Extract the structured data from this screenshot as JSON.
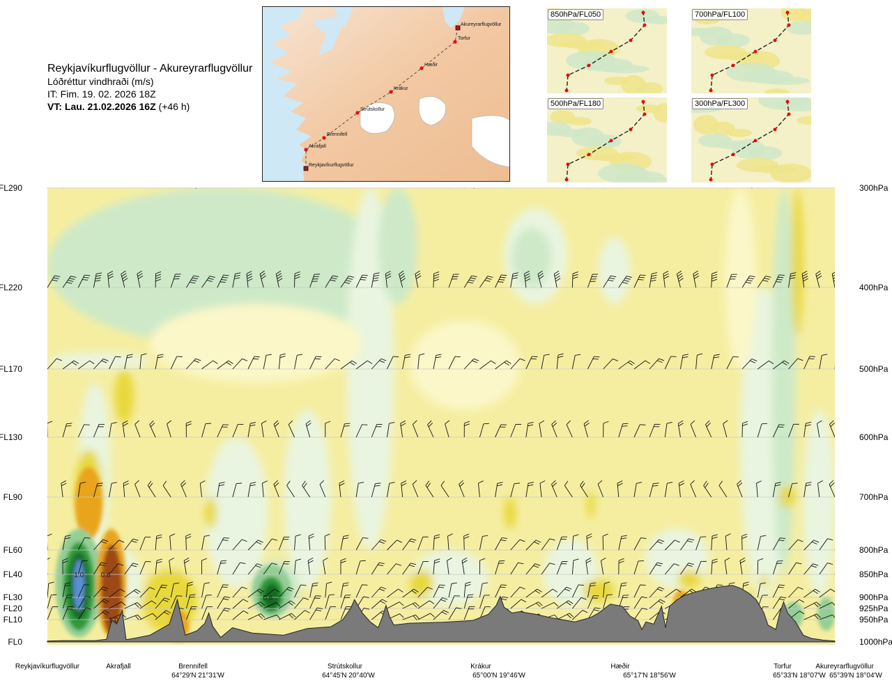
{
  "header": {
    "route": "Reykjavíkurflugvöllur - Akureyrarflugvöllur",
    "quantity": "Lóðréttur vindhraði (m/s)",
    "issue_time": "IT: Fim. 19. 02. 2026 18Z",
    "valid_prefix": "VT: Lau. 21.02.2026 16Z",
    "valid_suffix": "(+46 h)"
  },
  "route_map": {
    "waypoints": [
      {
        "name": "Akureyrarflugvöllur",
        "type": "airport"
      },
      {
        "name": "Torfur",
        "type": "point"
      },
      {
        "name": "Hæðir",
        "type": "point"
      },
      {
        "name": "Krákur",
        "type": "point"
      },
      {
        "name": "Strútskollur",
        "type": "point"
      },
      {
        "name": "Brennifell",
        "type": "point"
      },
      {
        "name": "Akrafjall",
        "type": "point"
      },
      {
        "name": "Reykjavíkurflugvöllur",
        "type": "airport"
      }
    ]
  },
  "mini_maps": [
    {
      "label": "850hPa/FL050"
    },
    {
      "label": "700hPa/FL100"
    },
    {
      "label": "500hPa/FL180"
    },
    {
      "label": "300hPa/FL300"
    }
  ],
  "colors": {
    "down_light": "#fbf7c8",
    "down_mid": "#f5eea1",
    "down_strong": "#e8d83a",
    "down_orange": "#e9a41f",
    "down_brown": "#9c4a14",
    "up_light": "#e9f5e0",
    "up_mid": "#cde9c8",
    "up_strong": "#93cf95",
    "up_green": "#2f9a3a",
    "up_dark": "#136a23",
    "up_blue": "#5a8fd2",
    "terrain": "#7a7a7a",
    "water": "#cfe8f5",
    "land": "#f3d0b0"
  },
  "chart_data": {
    "type": "heatmap",
    "title": "Lóðréttur vindhraði (m/s)",
    "x_axis": "route distance (fraction of route)",
    "left_axis_levels": [
      {
        "label": "FL290",
        "pressure": 300
      },
      {
        "label": "FL220",
        "pressure": 400
      },
      {
        "label": "FL170",
        "pressure": 500
      },
      {
        "label": "FL130",
        "pressure": 600
      },
      {
        "label": "FL90",
        "pressure": 700
      },
      {
        "label": "FL60",
        "pressure": 800
      },
      {
        "label": "FL40",
        "pressure": 850
      },
      {
        "label": "FL30",
        "pressure": 900
      },
      {
        "label": "FL20",
        "pressure": 925
      },
      {
        "label": "FL10",
        "pressure": 950
      },
      {
        "label": "FL0",
        "pressure": 1000
      }
    ],
    "right_axis_levels": [
      {
        "label": "300hPa",
        "pressure": 300
      },
      {
        "label": "400hPa",
        "pressure": 400
      },
      {
        "label": "500hPa",
        "pressure": 500
      },
      {
        "label": "600hPa",
        "pressure": 600
      },
      {
        "label": "700hPa",
        "pressure": 700
      },
      {
        "label": "800hPa",
        "pressure": 800
      },
      {
        "label": "850hPa",
        "pressure": 850
      },
      {
        "label": "900hPa",
        "pressure": 900
      },
      {
        "label": "925hPa",
        "pressure": 925
      },
      {
        "label": "950hPa",
        "pressure": 950
      },
      {
        "label": "1000hPa",
        "pressure": 1000
      }
    ],
    "barb_levels": [
      300,
      400,
      500,
      600,
      700,
      800,
      850,
      900,
      925,
      950
    ],
    "ylim_hpa": [
      300,
      1000
    ],
    "waypoints": [
      {
        "name": "Reykjavíkurflugvöllur",
        "coord": "",
        "x": 0.0
      },
      {
        "name": "Akrafjall",
        "coord": "",
        "x": 0.09
      },
      {
        "name": "Brennifell",
        "coord": "64°29'N 21°31'W",
        "x": 0.19
      },
      {
        "name": "Strútskollur",
        "coord": "64°45'N 20°40'W",
        "x": 0.38
      },
      {
        "name": "Krákur",
        "coord": "65°00'N 19°46'W",
        "x": 0.57
      },
      {
        "name": "Hæðir",
        "coord": "65°17'N 18°56'W",
        "x": 0.77
      },
      {
        "name": "Torfur",
        "coord": "65°33'N 18°07'W",
        "x": 0.95
      },
      {
        "name": "Akureyrarflugvöllur",
        "coord": "65°39'N 18°04'W",
        "x": 1.0
      }
    ],
    "value_labels": [
      {
        "text": "1.0",
        "x": 0.04,
        "p": 850
      },
      {
        "text": "0.6",
        "x": 0.074,
        "p": 850
      },
      {
        "text": "0.6",
        "x": 0.28,
        "p": 900
      },
      {
        "text": "1.0",
        "x": 0.084,
        "p": 950
      }
    ],
    "terrain_hpa": [
      [
        0.0,
        998
      ],
      [
        0.02,
        997
      ],
      [
        0.06,
        997
      ],
      [
        0.075,
        994
      ],
      [
        0.082,
        950
      ],
      [
        0.088,
        960
      ],
      [
        0.095,
        930
      ],
      [
        0.1,
        995
      ],
      [
        0.11,
        992
      ],
      [
        0.13,
        985
      ],
      [
        0.155,
        960
      ],
      [
        0.165,
        905
      ],
      [
        0.175,
        985
      ],
      [
        0.19,
        975
      ],
      [
        0.2,
        958
      ],
      [
        0.205,
        935
      ],
      [
        0.21,
        965
      ],
      [
        0.22,
        990
      ],
      [
        0.235,
        968
      ],
      [
        0.26,
        980
      ],
      [
        0.3,
        985
      ],
      [
        0.33,
        970
      ],
      [
        0.36,
        966
      ],
      [
        0.375,
        950
      ],
      [
        0.385,
        925
      ],
      [
        0.39,
        905
      ],
      [
        0.4,
        935
      ],
      [
        0.41,
        955
      ],
      [
        0.42,
        968
      ],
      [
        0.425,
        946
      ],
      [
        0.43,
        918
      ],
      [
        0.435,
        945
      ],
      [
        0.44,
        962
      ],
      [
        0.46,
        958
      ],
      [
        0.5,
        956
      ],
      [
        0.54,
        952
      ],
      [
        0.56,
        938
      ],
      [
        0.57,
        918
      ],
      [
        0.575,
        898
      ],
      [
        0.58,
        922
      ],
      [
        0.59,
        935
      ],
      [
        0.6,
        932
      ],
      [
        0.62,
        938
      ],
      [
        0.64,
        946
      ],
      [
        0.67,
        955
      ],
      [
        0.69,
        945
      ],
      [
        0.7,
        935
      ],
      [
        0.715,
        915
      ],
      [
        0.73,
        920
      ],
      [
        0.74,
        942
      ],
      [
        0.75,
        952
      ],
      [
        0.755,
        972
      ],
      [
        0.76,
        955
      ],
      [
        0.77,
        960
      ],
      [
        0.78,
        920
      ],
      [
        0.785,
        968
      ],
      [
        0.79,
        920
      ],
      [
        0.8,
        905
      ],
      [
        0.81,
        895
      ],
      [
        0.83,
        885
      ],
      [
        0.85,
        878
      ],
      [
        0.87,
        874
      ],
      [
        0.88,
        880
      ],
      [
        0.89,
        890
      ],
      [
        0.9,
        905
      ],
      [
        0.91,
        935
      ],
      [
        0.915,
        962
      ],
      [
        0.925,
        972
      ],
      [
        0.93,
        935
      ],
      [
        0.935,
        910
      ],
      [
        0.94,
        935
      ],
      [
        0.95,
        955
      ],
      [
        0.96,
        985
      ],
      [
        0.97,
        992
      ],
      [
        0.985,
        996
      ],
      [
        1.0,
        998
      ]
    ]
  }
}
